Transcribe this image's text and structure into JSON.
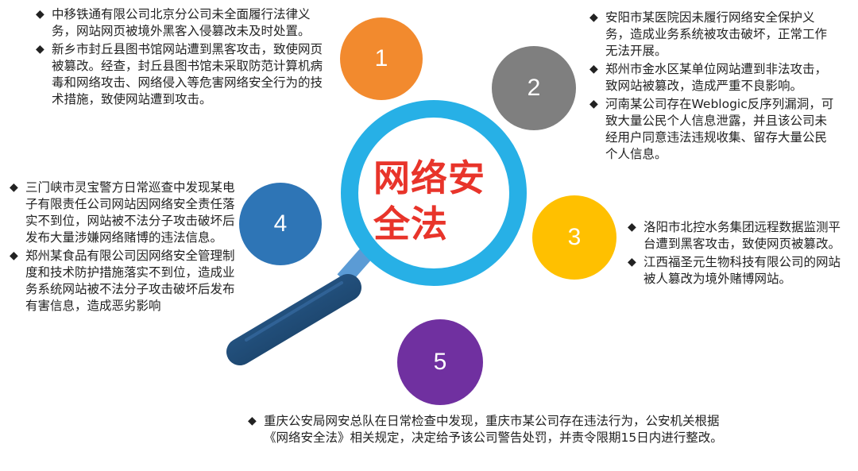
{
  "title": "网络安全法",
  "circles": [
    {
      "label": "1",
      "color": "#f28a2e"
    },
    {
      "label": "2",
      "color": "#7f7f7f"
    },
    {
      "label": "3",
      "color": "#ffc000"
    },
    {
      "label": "4",
      "color": "#2e75b6"
    },
    {
      "label": "5",
      "color": "#7030a0"
    }
  ],
  "colors": {
    "lens_ring": "#27b0e6",
    "handle": "#1f4e79",
    "title": "#e8342a"
  },
  "bullet_symbol": "◆",
  "cases": {
    "group1": [
      "中移铁通有限公司北京分公司未全面履行法律义务，网站网页被境外黑客入侵篡改未及时处置。",
      "新乡市封丘县图书馆网站遭到黑客攻击，致使网页被篡改。经查，封丘县图书馆未采取防范计算机病毒和网络攻击、网络侵入等危害网络安全行为的技术措施，致使网站遭到攻击。"
    ],
    "group2": [
      "安阳市某医院因未履行网络安全保护义务，造成业务系统被攻击破坏，正常工作无法开展。",
      "郑州市金水区某单位网站遭到非法攻击，致网站被篡改，造成严重不良影响。",
      "河南某公司存在Weblogic反序列漏洞，可致大量公民个人信息泄露，并且该公司未经用户同意违法违规收集、留存大量公民个人信息。"
    ],
    "group3": [
      "洛阳市北控水务集团远程数据监测平台遭到黑客攻击，致使网页被篡改。",
      "江西福圣元生物科技有限公司的网站被人篡改为境外赌博网站。"
    ],
    "group4": [
      "三门峡市灵宝警方日常巡查中发现某电子有限责任公司网站因网络安全责任落实不到位，网站被不法分子攻击破坏后发布大量涉嫌网络赌博的违法信息。",
      "郑州某食品有限公司因网络安全管理制度和技术防护措施落实不到位，造成业务系统网站被不法分子攻击破坏后发布有害信息，造成恶劣影响"
    ],
    "group5": [
      "重庆公安局网安总队在日常检查中发现，重庆市某公司存在违法行为，公安机关根据《网络安全法》相关规定，决定给予该公司警告处罚，并责令限期15日内进行整改。"
    ]
  }
}
